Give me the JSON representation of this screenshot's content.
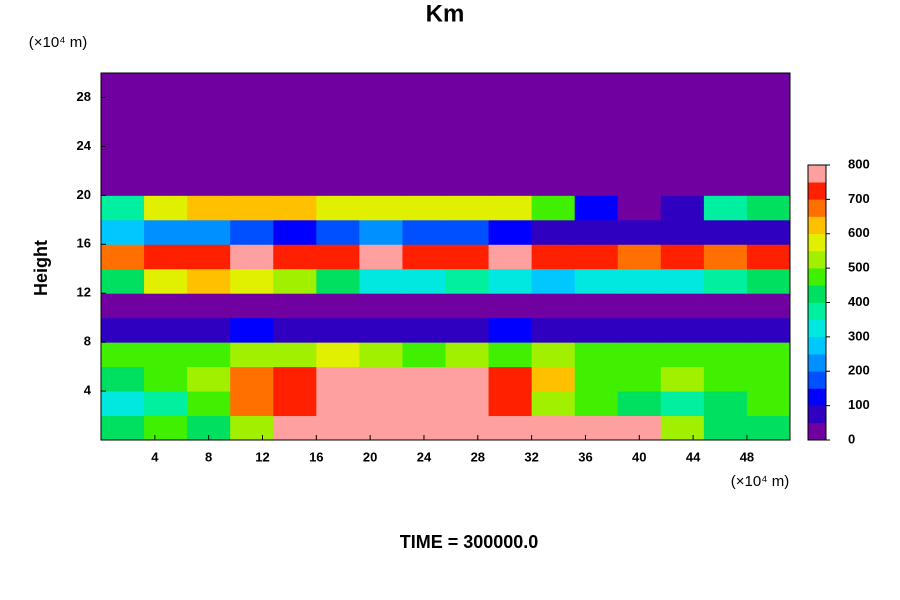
{
  "chart_data": {
    "type": "heatmap",
    "title": "Km",
    "ylabel": "Height",
    "y_unit": "(×10⁴ m)",
    "x_unit": "(×10⁴ m)",
    "footer": "TIME = 300000.0",
    "xlim": [
      0,
      51.2
    ],
    "ylim": [
      0,
      30
    ],
    "xticks": [
      4,
      8,
      12,
      16,
      20,
      24,
      28,
      32,
      36,
      40,
      44,
      48
    ],
    "yticks": [
      4,
      8,
      12,
      16,
      20,
      24,
      28
    ],
    "x_edges": [
      0,
      3.2,
      6.4,
      9.6,
      12.8,
      16,
      19.2,
      22.4,
      25.6,
      28.8,
      32,
      35.2,
      38.4,
      41.6,
      44.8,
      48,
      51.2
    ],
    "y_edges": [
      0,
      2,
      4,
      6,
      8,
      10,
      12,
      14,
      16,
      18,
      20,
      22,
      24,
      26,
      28,
      30
    ],
    "z": [
      [
        400,
        450,
        400,
        500,
        750,
        800,
        800,
        800,
        800,
        800,
        750,
        800,
        800,
        500,
        400,
        400
      ],
      [
        300,
        350,
        450,
        650,
        700,
        750,
        800,
        800,
        750,
        700,
        500,
        450,
        400,
        350,
        400,
        450
      ],
      [
        400,
        450,
        500,
        650,
        700,
        750,
        800,
        800,
        800,
        700,
        600,
        450,
        450,
        500,
        450,
        450
      ],
      [
        450,
        450,
        450,
        500,
        500,
        550,
        500,
        450,
        500,
        450,
        500,
        450,
        450,
        450,
        450,
        450
      ],
      [
        50,
        50,
        50,
        100,
        50,
        50,
        50,
        50,
        50,
        100,
        50,
        50,
        50,
        50,
        50,
        50
      ],
      [
        0,
        0,
        0,
        0,
        0,
        0,
        0,
        0,
        0,
        0,
        0,
        0,
        0,
        0,
        0,
        0
      ],
      [
        400,
        550,
        600,
        550,
        500,
        400,
        300,
        300,
        350,
        300,
        250,
        300,
        300,
        300,
        350,
        400
      ],
      [
        650,
        700,
        700,
        750,
        700,
        700,
        750,
        700,
        700,
        750,
        700,
        700,
        650,
        700,
        650,
        700
      ],
      [
        250,
        200,
        200,
        150,
        100,
        150,
        200,
        150,
        150,
        100,
        50,
        50,
        50,
        50,
        50,
        50
      ],
      [
        350,
        550,
        600,
        600,
        600,
        550,
        550,
        550,
        550,
        550,
        450,
        100,
        0,
        50,
        350,
        400
      ],
      [
        0,
        0,
        0,
        0,
        0,
        0,
        0,
        0,
        0,
        0,
        0,
        0,
        0,
        0,
        0,
        0
      ],
      [
        0,
        0,
        0,
        0,
        0,
        0,
        0,
        0,
        0,
        0,
        0,
        0,
        0,
        0,
        0,
        0
      ],
      [
        0,
        0,
        0,
        0,
        0,
        0,
        0,
        0,
        0,
        0,
        0,
        0,
        0,
        0,
        0,
        0
      ],
      [
        0,
        0,
        0,
        0,
        0,
        0,
        0,
        0,
        0,
        0,
        0,
        0,
        0,
        0,
        0,
        0
      ],
      [
        0,
        0,
        0,
        0,
        0,
        0,
        0,
        0,
        0,
        0,
        0,
        0,
        0,
        0,
        0,
        0
      ]
    ],
    "levels": [
      0,
      50,
      100,
      150,
      200,
      250,
      300,
      350,
      400,
      450,
      500,
      550,
      600,
      650,
      700,
      750,
      800
    ],
    "colors": [
      "#7000a0",
      "#3000c0",
      "#0000ff",
      "#0050ff",
      "#0090ff",
      "#00c8ff",
      "#00e8e0",
      "#00f0a0",
      "#00e060",
      "#40f000",
      "#a0f000",
      "#e0f000",
      "#ffc000",
      "#ff7000",
      "#ff2000",
      "#ffa0a0"
    ],
    "colorbar_ticks": [
      0,
      100,
      200,
      300,
      400,
      500,
      600,
      700,
      800
    ]
  }
}
